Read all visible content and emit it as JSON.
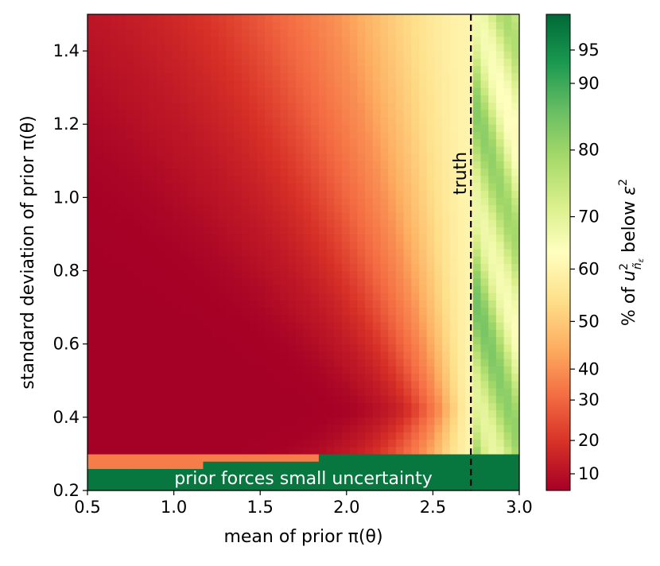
{
  "chart_data": {
    "type": "heatmap",
    "title": "",
    "xlabel": "mean of prior π(θ)",
    "ylabel": "standard deviation of prior π(θ)",
    "xlim": [
      0.5,
      3.0
    ],
    "ylim": [
      0.2,
      1.5
    ],
    "x_ticks": [
      {
        "value": 0.5,
        "label": "0.5"
      },
      {
        "value": 1.0,
        "label": "1.0"
      },
      {
        "value": 1.5,
        "label": "1.5"
      },
      {
        "value": 2.0,
        "label": "2.0"
      },
      {
        "value": 2.5,
        "label": "2.5"
      },
      {
        "value": 3.0,
        "label": "3.0"
      }
    ],
    "y_ticks": [
      {
        "value": 0.2,
        "label": "0.2"
      },
      {
        "value": 0.4,
        "label": "0.4"
      },
      {
        "value": 0.6,
        "label": "0.6"
      },
      {
        "value": 0.8,
        "label": "0.8"
      },
      {
        "value": 1.0,
        "label": "1.0"
      },
      {
        "value": 1.2,
        "label": "1.2"
      },
      {
        "value": 1.4,
        "label": "1.4"
      }
    ],
    "grid": false,
    "colorscale": "RdYlGn",
    "colorbar": {
      "label_parts": [
        "% of ",
        "u",
        "2",
        "ñ",
        "ε",
        " below ",
        "ε",
        "2"
      ],
      "range": [
        7,
        100
      ],
      "ticks": [
        {
          "value": 10,
          "label": "10"
        },
        {
          "value": 20,
          "label": "20"
        },
        {
          "value": 30,
          "label": "30"
        },
        {
          "value": 40,
          "label": "40"
        },
        {
          "value": 50,
          "label": "50"
        },
        {
          "value": 60,
          "label": "60"
        },
        {
          "value": 70,
          "label": "70"
        },
        {
          "value": 80,
          "label": "80"
        },
        {
          "value": 90,
          "label": "90"
        },
        {
          "value": 95,
          "label": "95"
        }
      ]
    },
    "truth_line": {
      "x": 2.72,
      "label": "truth",
      "style": "dashed"
    },
    "annotation": {
      "text": "prior forces small uncertainty",
      "x": 1.75,
      "y": 0.235
    },
    "grid_resolution": {
      "nx": 56,
      "ny": 65
    },
    "value_profile": {
      "low_sigma_band_max": 0.31,
      "low_sigma_band_value": 98,
      "dark_red_value": 7,
      "near_truth_value": 60,
      "right_of_truth_value": 75
    }
  }
}
